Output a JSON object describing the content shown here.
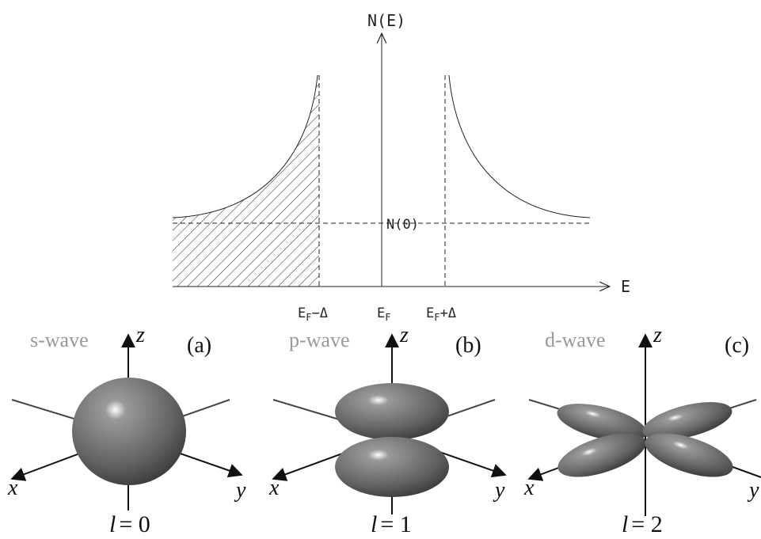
{
  "dos_plot": {
    "y_axis_label": "N(E)",
    "x_axis_label": "E",
    "normal_level_label": "N(0)",
    "tick_labels": [
      {
        "base": "E",
        "sub": "F",
        "suffix": "−Δ"
      },
      {
        "base": "E",
        "sub": "F"
      },
      {
        "base": "E",
        "sub": "F",
        "suffix": "+Δ"
      }
    ]
  },
  "panels": [
    {
      "name": "s-wave",
      "tag": "(a)",
      "axes": {
        "z": "z",
        "x": "x",
        "y": "y"
      },
      "caption": {
        "symbol": "l",
        "equation": "= 0"
      }
    },
    {
      "name": "p-wave",
      "tag": "(b)",
      "axes": {
        "z": "z",
        "x": "x",
        "y": "y"
      },
      "caption": {
        "symbol": "l",
        "equation": "= 1"
      }
    },
    {
      "name": "d-wave",
      "tag": "(c)",
      "axes": {
        "z": "z",
        "x": "x",
        "y": "y"
      },
      "caption": {
        "symbol": "l",
        "equation": "= 2"
      }
    }
  ]
}
